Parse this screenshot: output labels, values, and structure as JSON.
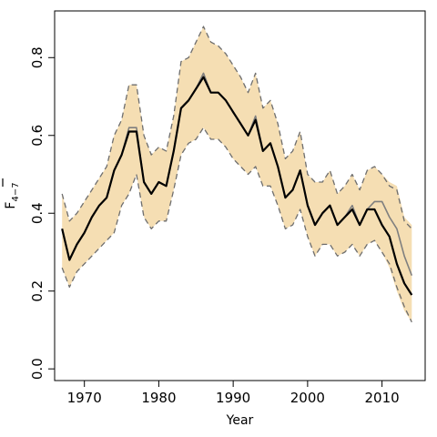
{
  "chart_data": {
    "type": "line",
    "xlabel": "Year",
    "ylabel": "F",
    "ylabel_subscript": "4−7",
    "xlim": [
      1966.0,
      2015.8
    ],
    "ylim": [
      -0.03,
      0.92
    ],
    "x_ticks": [
      1970,
      1980,
      1990,
      2000,
      2010
    ],
    "x_tick_labels": [
      "1970",
      "1980",
      "1990",
      "2000",
      "2010"
    ],
    "y_ticks": [
      0.0,
      0.2,
      0.4,
      0.6,
      0.8
    ],
    "y_tick_labels": [
      "0.0",
      "0.2",
      "0.4",
      "0.6",
      "0.8"
    ],
    "grid": false,
    "colors": {
      "band": "#f5deb3",
      "main": "#000000",
      "gray": "#7f7f7f",
      "dashed": "#6e6e6e"
    },
    "x": [
      1967,
      1968,
      1969,
      1970,
      1971,
      1972,
      1973,
      1974,
      1975,
      1976,
      1977,
      1978,
      1979,
      1980,
      1981,
      1982,
      1983,
      1984,
      1985,
      1986,
      1987,
      1988,
      1989,
      1990,
      1991,
      1992,
      1993,
      1994,
      1995,
      1996,
      1997,
      1998,
      1999,
      2000,
      2001,
      2002,
      2003,
      2004,
      2005,
      2006,
      2007,
      2008,
      2009,
      2010,
      2011,
      2012,
      2013,
      2014
    ],
    "band_upper": [
      0.45,
      0.38,
      0.4,
      0.43,
      0.46,
      0.49,
      0.52,
      0.6,
      0.64,
      0.73,
      0.73,
      0.6,
      0.55,
      0.57,
      0.56,
      0.65,
      0.79,
      0.8,
      0.84,
      0.88,
      0.84,
      0.83,
      0.81,
      0.78,
      0.75,
      0.71,
      0.76,
      0.67,
      0.69,
      0.63,
      0.54,
      0.56,
      0.61,
      0.5,
      0.48,
      0.48,
      0.51,
      0.45,
      0.47,
      0.5,
      0.46,
      0.51,
      0.52,
      0.5,
      0.48,
      0.47,
      0.39,
      0.37
    ],
    "band_lower": [
      0.26,
      0.21,
      0.25,
      0.27,
      0.29,
      0.31,
      0.33,
      0.35,
      0.42,
      0.45,
      0.5,
      0.39,
      0.36,
      0.38,
      0.38,
      0.46,
      0.55,
      0.58,
      0.59,
      0.62,
      0.59,
      0.59,
      0.57,
      0.54,
      0.52,
      0.5,
      0.52,
      0.47,
      0.47,
      0.42,
      0.36,
      0.37,
      0.41,
      0.34,
      0.29,
      0.32,
      0.32,
      0.29,
      0.3,
      0.32,
      0.29,
      0.32,
      0.33,
      0.3,
      0.26,
      0.2,
      0.15,
      0.12
    ],
    "series": [
      {
        "values": [
          0.36,
          0.28,
          0.32,
          0.35,
          0.39,
          0.42,
          0.44,
          0.51,
          0.55,
          0.62,
          0.62,
          0.48,
          0.45,
          0.48,
          0.47,
          0.56,
          0.67,
          0.69,
          0.72,
          0.76,
          0.71,
          0.71,
          0.69,
          0.66,
          0.63,
          0.6,
          0.65,
          0.56,
          0.58,
          0.52,
          0.44,
          0.46,
          0.51,
          0.42,
          0.37,
          0.4,
          0.42,
          0.37,
          0.39,
          0.42,
          0.37,
          0.41,
          0.43,
          0.43,
          0.39,
          0.36,
          0.29,
          0.24
        ]
      },
      {
        "values": [
          0.36,
          0.28,
          0.32,
          0.35,
          0.39,
          0.42,
          0.44,
          0.51,
          0.55,
          0.61,
          0.61,
          0.48,
          0.45,
          0.48,
          0.47,
          0.56,
          0.67,
          0.69,
          0.72,
          0.75,
          0.71,
          0.71,
          0.69,
          0.66,
          0.63,
          0.6,
          0.64,
          0.56,
          0.58,
          0.52,
          0.44,
          0.46,
          0.51,
          0.42,
          0.37,
          0.4,
          0.42,
          0.37,
          0.39,
          0.41,
          0.37,
          0.41,
          0.41,
          0.37,
          0.34,
          0.27,
          0.22,
          0.19
        ]
      }
    ],
    "dashed_upper": [
      0.45,
      0.38,
      0.4,
      0.43,
      0.46,
      0.49,
      0.52,
      0.6,
      0.64,
      0.73,
      0.73,
      0.6,
      0.55,
      0.57,
      0.56,
      0.65,
      0.79,
      0.8,
      0.84,
      0.88,
      0.84,
      0.83,
      0.81,
      0.78,
      0.75,
      0.71,
      0.76,
      0.67,
      0.69,
      0.63,
      0.54,
      0.56,
      0.61,
      0.5,
      0.48,
      0.48,
      0.51,
      0.45,
      0.47,
      0.5,
      0.46,
      0.51,
      0.52,
      0.5,
      0.47,
      0.46,
      0.38,
      0.36
    ],
    "dashed_lower": [
      0.26,
      0.21,
      0.25,
      0.27,
      0.29,
      0.31,
      0.33,
      0.35,
      0.42,
      0.45,
      0.5,
      0.39,
      0.36,
      0.38,
      0.38,
      0.46,
      0.55,
      0.58,
      0.59,
      0.62,
      0.59,
      0.59,
      0.57,
      0.54,
      0.52,
      0.5,
      0.52,
      0.47,
      0.47,
      0.42,
      0.36,
      0.37,
      0.41,
      0.34,
      0.29,
      0.32,
      0.32,
      0.29,
      0.3,
      0.32,
      0.29,
      0.32,
      0.33,
      0.3,
      0.27,
      0.21,
      0.16,
      0.12
    ]
  }
}
